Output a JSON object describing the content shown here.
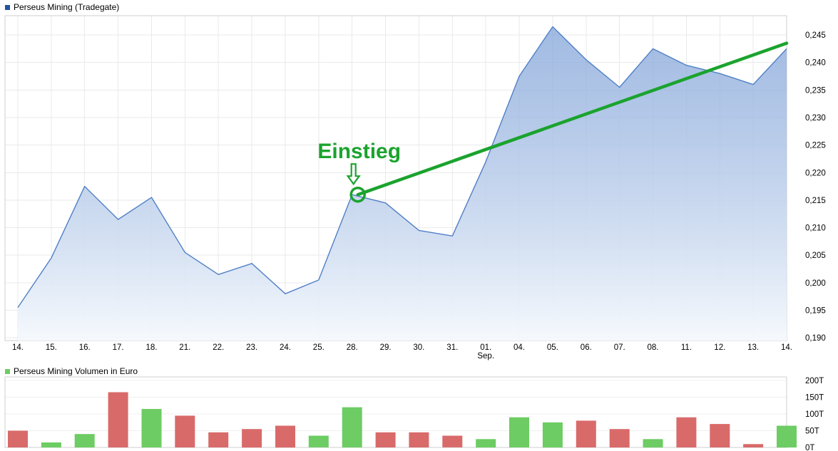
{
  "chart_data": [
    {
      "type": "area",
      "title": "Perseus Mining (Tradegate)",
      "series_marker_color": "#2153a1",
      "line_color": "#5080c6",
      "area_fill_top": "rgba(122,158,214,0.70)",
      "area_fill_bottom": "rgba(245,249,253,0.95)",
      "categories": [
        "14.",
        "15.",
        "16.",
        "17.",
        "18.",
        "21.",
        "22.",
        "23.",
        "24.",
        "25.",
        "28.",
        "29.",
        "30.",
        "31.",
        "01.",
        "04.",
        "05.",
        "06.",
        "07.",
        "08.",
        "11.",
        "12.",
        "13.",
        "14."
      ],
      "x_secondary_label": "Sep.",
      "x_secondary_index": 14,
      "values": [
        0.1955,
        0.2045,
        0.2175,
        0.2115,
        0.2155,
        0.2055,
        0.2015,
        0.2035,
        0.198,
        0.2005,
        0.216,
        0.2145,
        0.2095,
        0.2085,
        0.222,
        0.2375,
        0.2465,
        0.2405,
        0.2355,
        0.2425,
        0.2395,
        0.238,
        0.236,
        0.2425
      ],
      "ylim": [
        0.1895,
        0.2485
      ],
      "yticks": [
        0.19,
        0.195,
        0.2,
        0.205,
        0.21,
        0.215,
        0.22,
        0.225,
        0.23,
        0.235,
        0.24,
        0.245
      ],
      "ytick_labels": [
        "0,190",
        "0,195",
        "0,200",
        "0,205",
        "0,210",
        "0,215",
        "0,220",
        "0,225",
        "0,230",
        "0,235",
        "0,240",
        "0,245"
      ],
      "grid": true,
      "legend_position": "top-left",
      "annotation": {
        "label": "Einstieg",
        "color": "#1ba32e",
        "point_index": 10,
        "point_value": 0.216
      },
      "trend_line": {
        "color": "#1ba32e",
        "from_index": 10,
        "from_value": 0.216,
        "to_index": 23,
        "to_value": 0.2435
      }
    },
    {
      "type": "bar",
      "title": "Perseus Mining Volumen in Euro",
      "series_marker_color": "#6dcc63",
      "up_color": "#6dcc63",
      "down_color": "#d96a6a",
      "categories": [
        "14.",
        "15.",
        "16.",
        "17.",
        "18.",
        "21.",
        "22.",
        "23.",
        "24.",
        "25.",
        "28.",
        "29.",
        "30.",
        "31.",
        "01.",
        "04.",
        "05.",
        "06.",
        "07.",
        "08.",
        "11.",
        "12.",
        "13.",
        "14."
      ],
      "values": [
        50,
        15,
        40,
        165,
        115,
        95,
        45,
        55,
        65,
        35,
        120,
        45,
        45,
        35,
        25,
        90,
        75,
        80,
        55,
        25,
        90,
        70,
        10,
        65
      ],
      "directions": [
        "down",
        "up",
        "up",
        "down",
        "up",
        "down",
        "down",
        "down",
        "down",
        "up",
        "up",
        "down",
        "down",
        "down",
        "up",
        "up",
        "up",
        "down",
        "down",
        "up",
        "down",
        "down",
        "down",
        "up"
      ],
      "ylim": [
        0,
        200
      ],
      "yticks": [
        0,
        50,
        100,
        150,
        200
      ],
      "ytick_labels": [
        "0T",
        "50T",
        "100T",
        "150T",
        "200T"
      ],
      "unit": "T"
    }
  ]
}
